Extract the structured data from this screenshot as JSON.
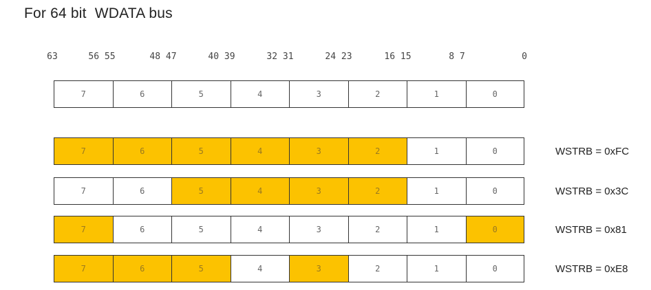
{
  "title": "For 64 bit  WDATA bus",
  "bit_labels": [
    "63",
    "56 55",
    "48 47",
    "40 39",
    "32 31",
    "24 23",
    "16 15",
    "8 7",
    "0"
  ],
  "lanes": [
    "7",
    "6",
    "5",
    "4",
    "3",
    "2",
    "1",
    "0"
  ],
  "colors": {
    "active": "#fcc200",
    "inactive": "#ffffff",
    "border": "#333333"
  },
  "header_row": {
    "strobe": [
      false,
      false,
      false,
      false,
      false,
      false,
      false,
      false
    ]
  },
  "examples": [
    {
      "label": "WSTRB = 0xFC",
      "strobe": [
        true,
        true,
        true,
        true,
        true,
        true,
        false,
        false
      ]
    },
    {
      "label": "WSTRB = 0x3C",
      "strobe": [
        false,
        false,
        true,
        true,
        true,
        true,
        false,
        false
      ]
    },
    {
      "label": "WSTRB = 0x81",
      "strobe": [
        true,
        false,
        false,
        false,
        false,
        false,
        false,
        true
      ]
    },
    {
      "label": "WSTRB = 0xE8",
      "strobe": [
        true,
        true,
        true,
        false,
        true,
        false,
        false,
        false
      ]
    }
  ]
}
